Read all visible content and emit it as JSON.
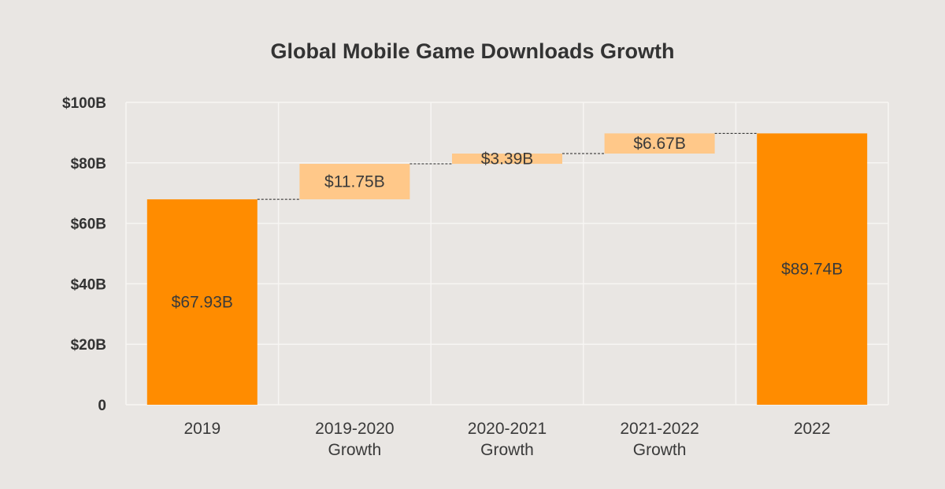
{
  "background_color": "#e9e6e3",
  "chart_data": {
    "type": "bar",
    "subtype": "waterfall",
    "title": "Global Mobile Game Downloads Growth",
    "xlabel": "",
    "ylabel": "",
    "ylim": [
      0,
      100
    ],
    "y_ticks": [
      0,
      20,
      40,
      60,
      80,
      100
    ],
    "y_tick_labels": [
      "0",
      "$20B",
      "$40B",
      "$60B",
      "$80B",
      "$100B"
    ],
    "grid": true,
    "categories": [
      [
        "2019"
      ],
      [
        "2019-2020",
        "Growth"
      ],
      [
        "2020-2021",
        "Growth"
      ],
      [
        "2021-2022",
        "Growth"
      ],
      [
        "2022"
      ]
    ],
    "bars": [
      {
        "kind": "total",
        "start": 0,
        "end": 67.93,
        "label": "$67.93B"
      },
      {
        "kind": "increase",
        "start": 67.93,
        "end": 79.68,
        "label": "$11.75B"
      },
      {
        "kind": "increase",
        "start": 79.68,
        "end": 83.07,
        "label": "$3.39B"
      },
      {
        "kind": "increase",
        "start": 83.07,
        "end": 89.74,
        "label": "$6.67B"
      },
      {
        "kind": "total",
        "start": 0,
        "end": 89.74,
        "label": "$89.74B"
      }
    ],
    "colors": {
      "total": "#ff8c00",
      "increase": "#ffc889",
      "grid": "#f7f5f3",
      "connector": "#222222"
    }
  }
}
